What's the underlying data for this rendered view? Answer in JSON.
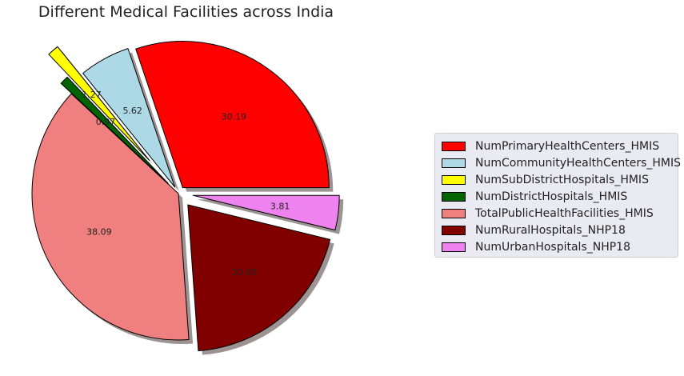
{
  "chart_data": {
    "type": "pie",
    "title": "Different Medical Facilities across India",
    "slices": [
      {
        "name": "NumPrimaryHealthCenters_HMIS",
        "value": 30.19,
        "label": "30.19",
        "color": "#ff0000"
      },
      {
        "name": "NumCommunityHealthCenters_HMIS",
        "value": 5.62,
        "label": "5.62",
        "color": "#add8e6"
      },
      {
        "name": "NumSubDistrictHospitals_HMIS",
        "value": 1.27,
        "label": "1.27",
        "color": "#ffff00"
      },
      {
        "name": "NumDistrictHospitals_HMIS",
        "value": 0.97,
        "label": "0.97",
        "color": "#006400"
      },
      {
        "name": "TotalPublicHealthFacilities_HMIS",
        "value": 38.09,
        "label": "38.09",
        "color": "#f08080"
      },
      {
        "name": "NumRuralHospitals_NHP18",
        "value": 20.05,
        "label": "20.05",
        "color": "#800000"
      },
      {
        "name": "NumUrbanHospitals_NHP18",
        "value": 3.81,
        "label": "3.81",
        "color": "#ee82ee"
      }
    ],
    "explode": [
      0.05,
      0.05,
      0.3,
      0.1,
      0.0,
      0.1,
      0.1
    ],
    "start_angle_deg": 0,
    "direction": "counterclockwise",
    "shadow": true,
    "legend_position": "right"
  }
}
